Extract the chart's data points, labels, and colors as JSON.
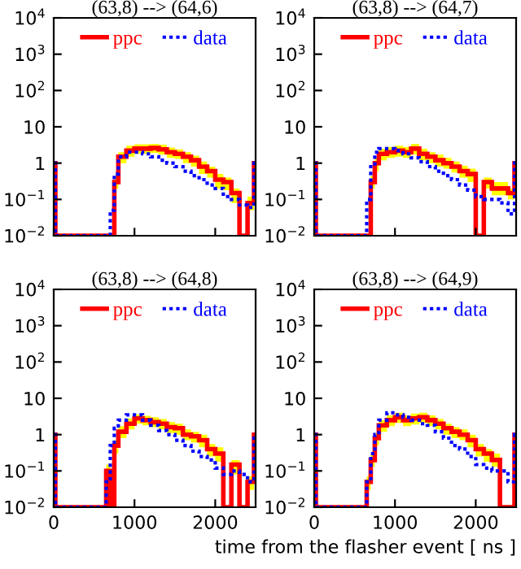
{
  "chart_data": [
    {
      "type": "step",
      "title": "(63,8) --> (64,6)",
      "x": [
        0,
        20,
        650,
        700,
        750,
        800,
        900,
        1000,
        1100,
        1200,
        1300,
        1400,
        1500,
        1600,
        1700,
        1800,
        1900,
        2000,
        2100,
        2200,
        2300,
        2400,
        2480
      ],
      "xlim": [
        0,
        2500
      ],
      "xticks": [
        0,
        1000,
        2000
      ],
      "ylim": [
        0.01,
        10000
      ],
      "log": true,
      "legend": "top",
      "tick_labels": "y",
      "yticks": [
        {
          "value": 0.01,
          "label": "10$^{−2}$"
        },
        {
          "value": 0.1,
          "label": "10$^{−1}$"
        },
        1,
        10,
        {
          "value": 100,
          "label": "10$^{2}$"
        },
        {
          "value": 1000,
          "label": "10$^{3}$"
        },
        {
          "value": 10000,
          "label": "10$^{4}$"
        }
      ],
      "series": [
        {
          "name": "ppc",
          "color": "#ff0000",
          "line_style": "solid",
          "values": [
            1,
            0.01,
            0.01,
            0.01,
            0.3,
            1.5,
            2.2,
            2.5,
            2.5,
            2.6,
            2.4,
            2,
            1.8,
            1.5,
            1.2,
            0.8,
            0.6,
            0.35,
            0.3,
            0.15,
            0.01,
            0.08,
            1
          ],
          "upper": [
            1,
            0.01,
            0.01,
            0.01,
            0.45,
            2,
            3,
            3.3,
            3.3,
            3.4,
            3.2,
            2.7,
            2.4,
            2,
            1.6,
            1.1,
            0.8,
            0.5,
            0.4,
            0.2,
            0.01,
            0.12,
            1
          ],
          "lower": [
            1,
            0.01,
            0.01,
            0.01,
            0.2,
            1,
            1.5,
            1.8,
            1.8,
            1.9,
            1.7,
            1.4,
            1.3,
            1,
            0.8,
            0.5,
            0.4,
            0.2,
            0.18,
            0.08,
            0.01,
            0.05,
            1
          ]
        },
        {
          "name": "data",
          "color": "#0000ff",
          "line_style": "dotted",
          "values": [
            1,
            0.01,
            0.01,
            0.05,
            0.5,
            1.5,
            2,
            2,
            1.8,
            1.5,
            1.2,
            1,
            0.8,
            0.6,
            0.45,
            0.35,
            0.25,
            0.2,
            0.12,
            0.1,
            0.07,
            0.06,
            1
          ]
        }
      ]
    },
    {
      "type": "step",
      "title": "(63,8) --> (64,7)",
      "x": [
        0,
        20,
        650,
        700,
        750,
        800,
        900,
        1000,
        1100,
        1200,
        1300,
        1400,
        1500,
        1600,
        1700,
        1800,
        1900,
        2000,
        2100,
        2200,
        2300,
        2400,
        2480
      ],
      "xlim": [
        0,
        2500
      ],
      "xticks": [
        0,
        1000,
        2000
      ],
      "ylim": [
        0.01,
        10000
      ],
      "log": true,
      "legend": "top",
      "tick_labels": "y",
      "yticks": [
        {
          "value": 0.01,
          "label": "10$^{−2}$"
        },
        {
          "value": 0.1,
          "label": "10$^{−1}$"
        },
        1,
        10,
        {
          "value": 100,
          "label": "10$^{2}$"
        },
        {
          "value": 1000,
          "label": "10$^{3}$"
        },
        {
          "value": 10000,
          "label": "10$^{4}$"
        }
      ],
      "series": [
        {
          "name": "ppc",
          "color": "#ff0000",
          "line_style": "solid",
          "values": [
            1,
            0.01,
            0.01,
            0.3,
            1,
            1.8,
            2,
            2.2,
            2,
            2.5,
            1.8,
            1.5,
            1.2,
            1,
            0.8,
            0.6,
            0.5,
            0.01,
            0.3,
            0.2,
            0.2,
            0.15,
            1
          ],
          "upper": [
            1,
            0.01,
            0.01,
            0.45,
            1.4,
            2.5,
            2.8,
            3,
            2.8,
            3.4,
            2.5,
            2,
            1.7,
            1.4,
            1.1,
            0.85,
            0.7,
            0.01,
            0.4,
            0.3,
            0.3,
            0.2,
            1
          ],
          "lower": [
            1,
            0.01,
            0.01,
            0.2,
            0.6,
            1.2,
            1.4,
            1.5,
            1.4,
            1.7,
            1.2,
            1,
            0.8,
            0.7,
            0.55,
            0.4,
            0.3,
            0.01,
            0.2,
            0.13,
            0.13,
            0.1,
            1
          ]
        },
        {
          "name": "data",
          "color": "#0000ff",
          "line_style": "dotted",
          "values": [
            1,
            0.01,
            0.1,
            0.8,
            2,
            2.5,
            2.5,
            2.2,
            1.8,
            1.4,
            1.1,
            0.8,
            0.6,
            0.45,
            0.35,
            0.25,
            0.18,
            0.12,
            0.1,
            0.1,
            0.08,
            0.04,
            1
          ]
        }
      ]
    },
    {
      "type": "step",
      "title": "(63,8) --> (64,8)",
      "x": [
        0,
        20,
        650,
        700,
        750,
        800,
        900,
        1000,
        1100,
        1200,
        1300,
        1400,
        1500,
        1600,
        1700,
        1800,
        1900,
        2000,
        2100,
        2200,
        2300,
        2400,
        2480
      ],
      "xlim": [
        0,
        2500
      ],
      "xticks": [
        0,
        1000,
        2000
      ],
      "ylim": [
        0.01,
        10000
      ],
      "log": true,
      "legend": "top",
      "yticks": [
        {
          "value": 0.01,
          "label": "10$^{−2}$"
        },
        {
          "value": 0.1,
          "label": "10$^{−1}$"
        },
        1,
        10,
        {
          "value": 100,
          "label": "10$^{2}$"
        },
        {
          "value": 1000,
          "label": "10$^{3}$"
        },
        {
          "value": 10000,
          "label": "10$^{4}$"
        }
      ],
      "series": [
        {
          "name": "ppc",
          "color": "#ff0000",
          "line_style": "solid",
          "values": [
            1,
            0.01,
            0.1,
            0.01,
            0.5,
            1.2,
            2,
            2.8,
            2.5,
            2.2,
            2,
            1.6,
            1.5,
            1,
            0.9,
            0.7,
            0.4,
            0.3,
            0.01,
            0.15,
            0.01,
            0.05,
            1
          ],
          "upper": [
            1,
            0.01,
            0.15,
            0.01,
            0.7,
            1.7,
            2.8,
            3.6,
            3.3,
            3,
            2.7,
            2.2,
            2,
            1.4,
            1.2,
            1,
            0.55,
            0.45,
            0.01,
            0.2,
            0.01,
            0.07,
            1
          ],
          "lower": [
            1,
            0.01,
            0.06,
            0.01,
            0.3,
            0.8,
            1.4,
            2,
            1.8,
            1.6,
            1.4,
            1.1,
            1,
            0.7,
            0.6,
            0.45,
            0.25,
            0.18,
            0.01,
            0.08,
            0.01,
            0.03,
            1
          ]
        },
        {
          "name": "data",
          "color": "#0000ff",
          "line_style": "dotted",
          "values": [
            1,
            0.01,
            0.05,
            0.5,
            1.5,
            2.5,
            3.5,
            3.5,
            2.5,
            1.8,
            1.3,
            1,
            0.7,
            0.5,
            0.35,
            0.25,
            0.2,
            0.12,
            0.08,
            0.1,
            0.08,
            0.05,
            1
          ]
        }
      ]
    },
    {
      "type": "step",
      "title": "(63,8) --> (64,9)",
      "xlabel": "time from the flasher event [ ns ]",
      "x": [
        0,
        20,
        650,
        700,
        750,
        800,
        900,
        1000,
        1100,
        1200,
        1300,
        1400,
        1500,
        1600,
        1700,
        1800,
        1900,
        2000,
        2100,
        2200,
        2300,
        2400,
        2480
      ],
      "xlim": [
        0,
        2500
      ],
      "xticks": [
        0,
        1000,
        2000
      ],
      "ylim": [
        0.01,
        10000
      ],
      "log": true,
      "legend": "top",
      "yticks": [
        {
          "value": 0.01,
          "label": "10$^{−2}$"
        },
        {
          "value": 0.1,
          "label": "10$^{−1}$"
        },
        1,
        10,
        {
          "value": 100,
          "label": "10$^{2}$"
        },
        {
          "value": 1000,
          "label": "10$^{3}$"
        },
        {
          "value": 10000,
          "label": "10$^{4}$"
        }
      ],
      "series": [
        {
          "name": "ppc",
          "color": "#ff0000",
          "line_style": "solid",
          "values": [
            1,
            0.01,
            0.05,
            0.2,
            0.8,
            1.8,
            2.5,
            3,
            2.5,
            2.8,
            3,
            2.5,
            2,
            1.5,
            1.2,
            1,
            0.7,
            0.4,
            0.3,
            0.2,
            0.01,
            0.01,
            1
          ],
          "upper": [
            1,
            0.01,
            0.07,
            0.3,
            1.1,
            2.5,
            3.4,
            4,
            3.4,
            3.8,
            4,
            3.4,
            2.7,
            2,
            1.6,
            1.4,
            1,
            0.55,
            0.4,
            0.3,
            0.01,
            0.01,
            1
          ],
          "lower": [
            1,
            0.01,
            0.03,
            0.13,
            0.5,
            1.2,
            1.7,
            2.1,
            1.7,
            1.9,
            2.1,
            1.7,
            1.4,
            1,
            0.8,
            0.7,
            0.45,
            0.25,
            0.18,
            0.13,
            0.01,
            0.01,
            1
          ]
        },
        {
          "name": "data",
          "color": "#0000ff",
          "line_style": "dotted",
          "values": [
            1,
            0.01,
            0.05,
            0.3,
            1,
            2.5,
            4,
            3.5,
            3,
            2.5,
            2,
            1.8,
            1.2,
            0.8,
            0.5,
            0.4,
            0.25,
            0.15,
            0.12,
            0.1,
            0.1,
            0.05,
            1
          ]
        }
      ]
    }
  ]
}
